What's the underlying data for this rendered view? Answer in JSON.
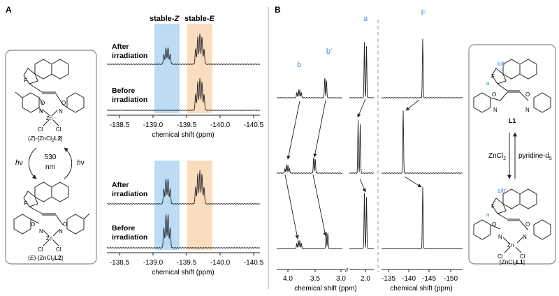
{
  "panel_a": {
    "panel_label": "A",
    "band_labels": {
      "z": "stable-",
      "z_italic": "Z",
      "e": "stable-",
      "e_italic": "E"
    },
    "spectra_labels": {
      "after_1": "After",
      "after_2": "irradiation",
      "before_1": "Before",
      "before_2": "irradiation"
    },
    "xaxis": {
      "ticks": [
        "-138.5",
        "-139.0",
        "-139.5",
        "-140.0",
        "-140.5"
      ],
      "label": "chemical shift (ppm)"
    },
    "scheme": {
      "top_caption_prefix": "(",
      "top_caption_italic": "Z",
      "top_caption_mid": ")-[ZnCl",
      "top_caption_sub": "2",
      "top_caption_bold": "L2",
      "top_caption_end": "]",
      "bottom_caption_italic": "E",
      "hv": "h",
      "nu": "ν",
      "wavelength_1": "530",
      "wavelength_2": "nm",
      "atoms": {
        "F": "F",
        "N": "N",
        "O": "O",
        "Zn": "Zn",
        "Cl": "Cl"
      }
    }
  },
  "panel_b": {
    "panel_label": "B",
    "peak_labels": {
      "b": "b",
      "bprime": "b′",
      "a": "a",
      "F": "F"
    },
    "xaxis": {
      "ticks_left": [
        "4.0",
        "3.5",
        "3.0",
        "2.0"
      ],
      "ticks_right": [
        "-135",
        "-140",
        "-145",
        "-150"
      ],
      "label": "chemical shift (ppm)"
    },
    "scheme": {
      "top_compound": "L1",
      "reagent_left": "ZnCl",
      "reagent_left_sub": "2",
      "reagent_right": "pyridine-d",
      "reagent_right_sub": "5",
      "bottom_compound_pre": "[ZnCl",
      "bottom_compound_sub": "2",
      "bottom_compound_bold": "L1",
      "bottom_compound_end": "]",
      "label_bb": "b/b′",
      "label_a": "a",
      "atoms": {
        "F": "F",
        "N": "N",
        "O": "O",
        "Zn": "Zn",
        "Cl": "Cl"
      }
    }
  },
  "colors": {
    "blue_band": "#bcdcf5",
    "orange_band": "#fadcbf",
    "accent_blue": "#4a90d9",
    "line": "#222222"
  }
}
